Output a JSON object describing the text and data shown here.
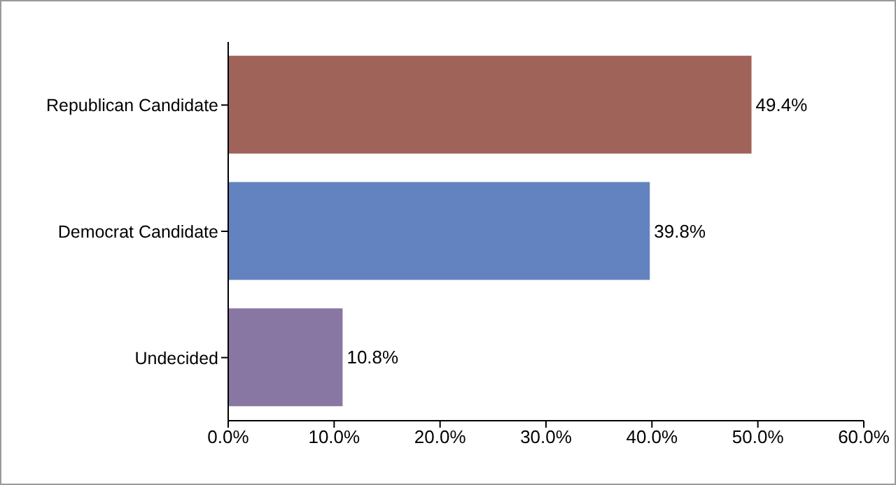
{
  "chart_data": {
    "type": "bar",
    "orientation": "horizontal",
    "categories": [
      "Republican Candidate",
      "Democrat Candidate",
      "Undecided"
    ],
    "values": [
      49.4,
      39.8,
      10.8
    ],
    "colors": [
      "#a0635a",
      "#6283bf",
      "#8877a3"
    ],
    "value_labels": [
      "49.4%",
      "39.8%",
      "10.8%"
    ],
    "xlim": [
      0,
      60
    ],
    "xticks": [
      {
        "value": 0,
        "label": "0.0%"
      },
      {
        "value": 10,
        "label": "10.0%"
      },
      {
        "value": 20,
        "label": "20.0%"
      },
      {
        "value": 30,
        "label": "30.0%"
      },
      {
        "value": 40,
        "label": "40.0%"
      },
      {
        "value": 50,
        "label": "50.0%"
      },
      {
        "value": 60,
        "label": "60.0%"
      }
    ],
    "grid": false,
    "legend": false
  }
}
